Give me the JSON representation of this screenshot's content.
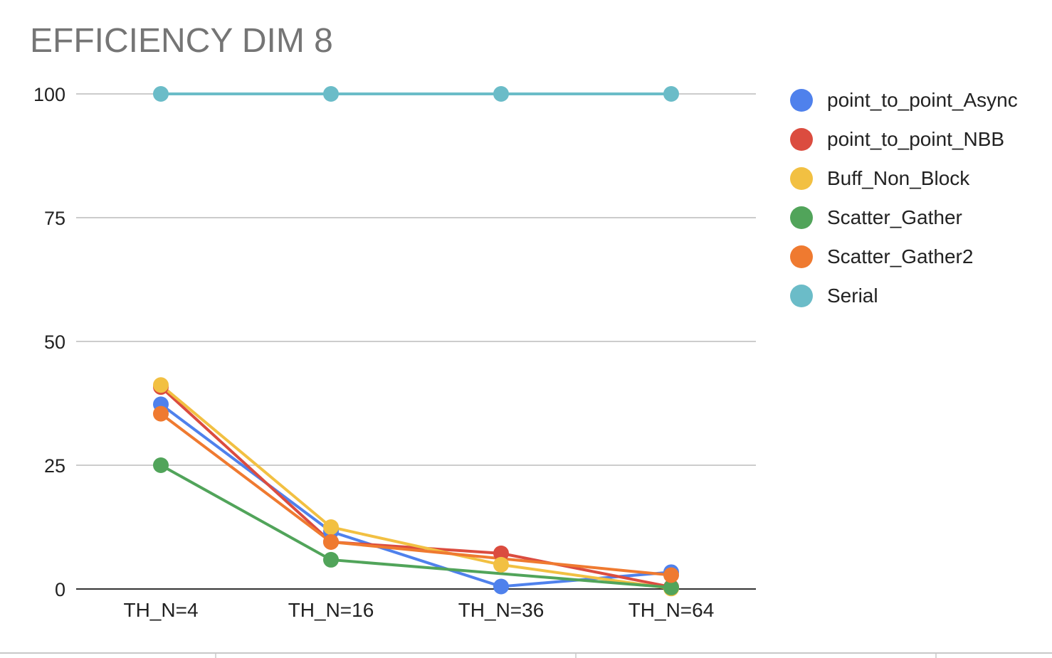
{
  "chart_data": {
    "type": "line",
    "title": "EFFICIENCY DIM 8",
    "categories": [
      "TH_N=4",
      "TH_N=16",
      "TH_N=36",
      "TH_N=64"
    ],
    "ylim": [
      0,
      100
    ],
    "yticks": [
      0,
      25,
      50,
      75,
      100
    ],
    "grid": true,
    "legend_position": "right",
    "series": [
      {
        "name": "point_to_point_Async",
        "color": "#4F81EC",
        "values": [
          37.3,
          11.6,
          0.5,
          3.4
        ]
      },
      {
        "name": "point_to_point_NBB",
        "color": "#DB4C3F",
        "values": [
          40.8,
          9.5,
          7.2,
          0.4
        ]
      },
      {
        "name": "Buff_Non_Block",
        "color": "#F2C042",
        "values": [
          41.2,
          12.5,
          4.9,
          0.1
        ]
      },
      {
        "name": "Scatter_Gather",
        "color": "#51A45A",
        "values": [
          25.0,
          5.9,
          null,
          0.3
        ]
      },
      {
        "name": "Scatter_Gather2",
        "color": "#EF7A30",
        "values": [
          35.4,
          9.5,
          null,
          2.8
        ]
      },
      {
        "name": "Serial",
        "color": "#6BBCC8",
        "values": [
          100,
          100,
          100,
          100
        ]
      }
    ]
  }
}
